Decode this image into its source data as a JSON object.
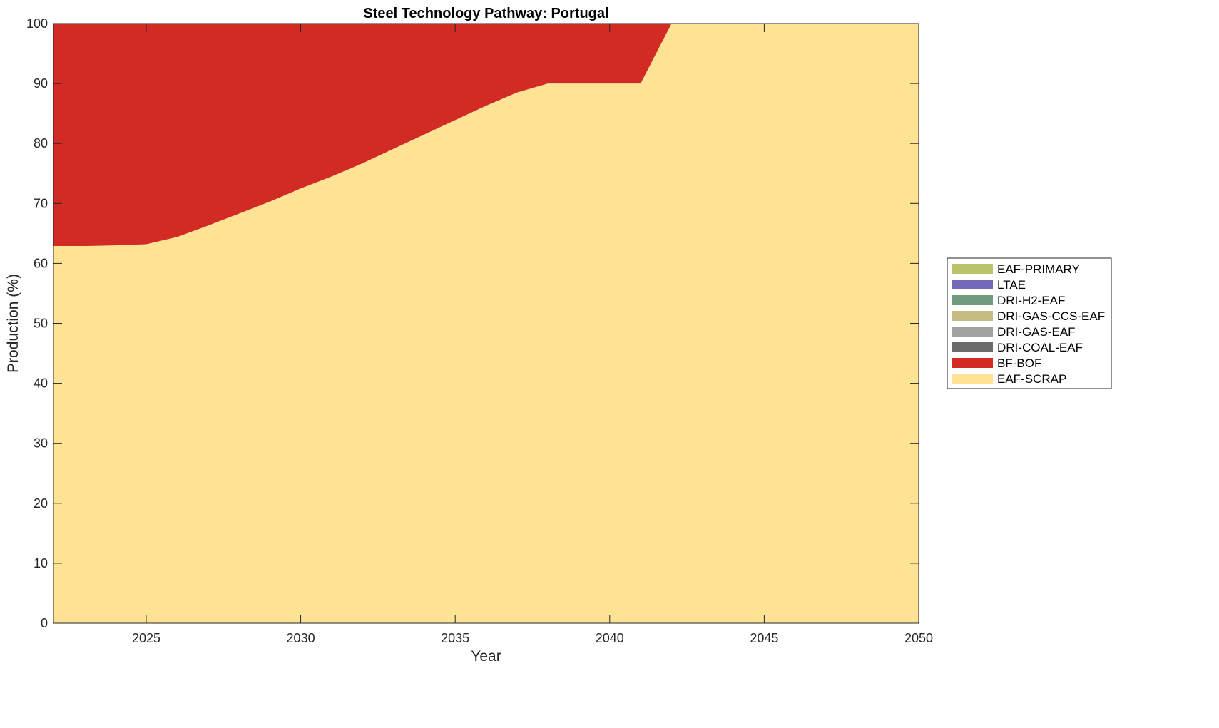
{
  "chart_data": {
    "type": "area",
    "stacked": true,
    "title": "Steel Technology Pathway: Portugal",
    "xlabel": "Year",
    "ylabel": "Production (%)",
    "xlim": [
      2022,
      2050
    ],
    "ylim": [
      0,
      100
    ],
    "xticks": [
      2025,
      2030,
      2035,
      2040,
      2045,
      2050
    ],
    "yticks": [
      0,
      10,
      20,
      30,
      40,
      50,
      60,
      70,
      80,
      90,
      100
    ],
    "grid": false,
    "legend_position": "right",
    "x": [
      2022,
      2023,
      2024,
      2025,
      2026,
      2027,
      2028,
      2029,
      2030,
      2031,
      2032,
      2033,
      2034,
      2035,
      2036,
      2037,
      2038,
      2039,
      2040,
      2041,
      2042,
      2043,
      2044,
      2045,
      2046,
      2047,
      2048,
      2049,
      2050
    ],
    "series": [
      {
        "name": "EAF-SCRAP",
        "color": "#FEE394",
        "values": [
          62.9,
          62.9,
          63.0,
          63.2,
          64.4,
          66.3,
          68.3,
          70.3,
          72.5,
          74.5,
          76.7,
          79.1,
          81.5,
          83.9,
          86.3,
          88.5,
          90,
          90,
          90,
          90,
          100,
          100,
          100,
          100,
          100,
          100,
          100,
          100,
          100
        ]
      },
      {
        "name": "BF-BOF",
        "color": "#D22B25",
        "values": [
          37.1,
          37.1,
          37.0,
          36.8,
          35.6,
          33.7,
          31.7,
          29.7,
          27.5,
          25.5,
          23.3,
          20.9,
          18.5,
          16.1,
          13.7,
          11.5,
          10,
          10,
          10,
          10,
          0,
          0,
          0,
          0,
          0,
          0,
          0,
          0,
          0
        ]
      },
      {
        "name": "DRI-COAL-EAF",
        "color": "#6C6C6C",
        "values": [
          0,
          0,
          0,
          0,
          0,
          0,
          0,
          0,
          0,
          0,
          0,
          0,
          0,
          0,
          0,
          0,
          0,
          0,
          0,
          0,
          0,
          0,
          0,
          0,
          0,
          0,
          0,
          0,
          0
        ]
      },
      {
        "name": "DRI-GAS-EAF",
        "color": "#A2A2A2",
        "values": [
          0,
          0,
          0,
          0,
          0,
          0,
          0,
          0,
          0,
          0,
          0,
          0,
          0,
          0,
          0,
          0,
          0,
          0,
          0,
          0,
          0,
          0,
          0,
          0,
          0,
          0,
          0,
          0,
          0
        ]
      },
      {
        "name": "DRI-GAS-CCS-EAF",
        "color": "#C5BC83",
        "values": [
          0,
          0,
          0,
          0,
          0,
          0,
          0,
          0,
          0,
          0,
          0,
          0,
          0,
          0,
          0,
          0,
          0,
          0,
          0,
          0,
          0,
          0,
          0,
          0,
          0,
          0,
          0,
          0,
          0
        ]
      },
      {
        "name": "DRI-H2-EAF",
        "color": "#719A7E",
        "values": [
          0,
          0,
          0,
          0,
          0,
          0,
          0,
          0,
          0,
          0,
          0,
          0,
          0,
          0,
          0,
          0,
          0,
          0,
          0,
          0,
          0,
          0,
          0,
          0,
          0,
          0,
          0,
          0,
          0
        ]
      },
      {
        "name": "LTAE",
        "color": "#7468B8",
        "values": [
          0,
          0,
          0,
          0,
          0,
          0,
          0,
          0,
          0,
          0,
          0,
          0,
          0,
          0,
          0,
          0,
          0,
          0,
          0,
          0,
          0,
          0,
          0,
          0,
          0,
          0,
          0,
          0,
          0
        ]
      },
      {
        "name": "EAF-PRIMARY",
        "color": "#BAC36A",
        "values": [
          0,
          0,
          0,
          0,
          0,
          0,
          0,
          0,
          0,
          0,
          0,
          0,
          0,
          0,
          0,
          0,
          0,
          0,
          0,
          0,
          0,
          0,
          0,
          0,
          0,
          0,
          0,
          0,
          0
        ]
      }
    ],
    "legend_order": [
      "EAF-PRIMARY",
      "LTAE",
      "DRI-H2-EAF",
      "DRI-GAS-CCS-EAF",
      "DRI-GAS-EAF",
      "DRI-COAL-EAF",
      "BF-BOF",
      "EAF-SCRAP"
    ]
  }
}
